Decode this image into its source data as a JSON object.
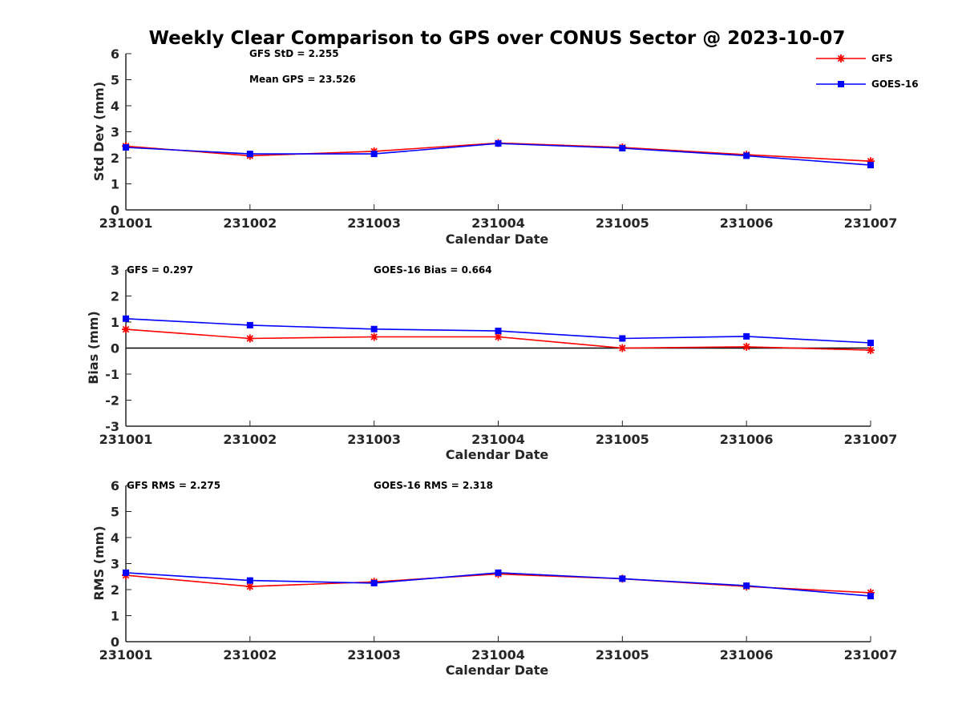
{
  "title": "Weekly Clear Comparison to GPS over CONUS Sector @ 2023-10-07",
  "colors": {
    "gfs": "#ff0000",
    "goes": "#0000ff",
    "axis": "#262626",
    "zero_line": "#000000"
  },
  "legend": {
    "placement": "top-right",
    "entries": [
      {
        "name": "GFS",
        "marker": "asterisk",
        "color": "#ff0000"
      },
      {
        "name": "GOES-16",
        "marker": "square",
        "color": "#0000ff"
      }
    ]
  },
  "chart_data": [
    {
      "type": "line",
      "title": "",
      "xlabel": "Calendar Date",
      "ylabel": "Std Dev (mm)",
      "categories": [
        "231001",
        "231002",
        "231003",
        "231004",
        "231005",
        "231006",
        "231007"
      ],
      "ylim": [
        0,
        6
      ],
      "yticks": [
        "0",
        "1",
        "2",
        "3",
        "4",
        "5",
        "6"
      ],
      "zero_line": false,
      "annotations": [
        "GFS StD = 2.255",
        "Mean GPS = 23.526"
      ],
      "series": [
        {
          "name": "GFS",
          "values": [
            2.45,
            2.08,
            2.25,
            2.57,
            2.4,
            2.12,
            1.87
          ]
        },
        {
          "name": "GOES-16",
          "values": [
            2.4,
            2.15,
            2.15,
            2.55,
            2.37,
            2.08,
            1.72
          ]
        }
      ]
    },
    {
      "type": "line",
      "title": "",
      "xlabel": "Calendar Date",
      "ylabel": "Bias (mm)",
      "categories": [
        "231001",
        "231002",
        "231003",
        "231004",
        "231005",
        "231006",
        "231007"
      ],
      "ylim": [
        -3,
        3
      ],
      "yticks": [
        "-3",
        "-2",
        "-1",
        "0",
        "1",
        "2",
        "3"
      ],
      "zero_line": true,
      "annotations": [
        "GFS = 0.297",
        "GOES-16 Bias  = 0.664"
      ],
      "series": [
        {
          "name": "GFS",
          "values": [
            0.72,
            0.37,
            0.43,
            0.43,
            0.0,
            0.05,
            -0.08
          ]
        },
        {
          "name": "GOES-16",
          "values": [
            1.13,
            0.88,
            0.73,
            0.66,
            0.37,
            0.45,
            0.2
          ]
        }
      ]
    },
    {
      "type": "line",
      "title": "",
      "xlabel": "Calendar Date",
      "ylabel": "RMS (mm)",
      "categories": [
        "231001",
        "231002",
        "231003",
        "231004",
        "231005",
        "231006",
        "231007"
      ],
      "ylim": [
        0,
        6
      ],
      "yticks": [
        "0",
        "1",
        "2",
        "3",
        "4",
        "5",
        "6"
      ],
      "zero_line": false,
      "annotations": [
        "GFS RMS = 2.275",
        "GOES-16 RMS = 2.318"
      ],
      "series": [
        {
          "name": "GFS",
          "values": [
            2.55,
            2.12,
            2.3,
            2.6,
            2.42,
            2.12,
            1.88
          ]
        },
        {
          "name": "GOES-16",
          "values": [
            2.65,
            2.35,
            2.25,
            2.65,
            2.42,
            2.15,
            1.75
          ]
        }
      ]
    }
  ]
}
